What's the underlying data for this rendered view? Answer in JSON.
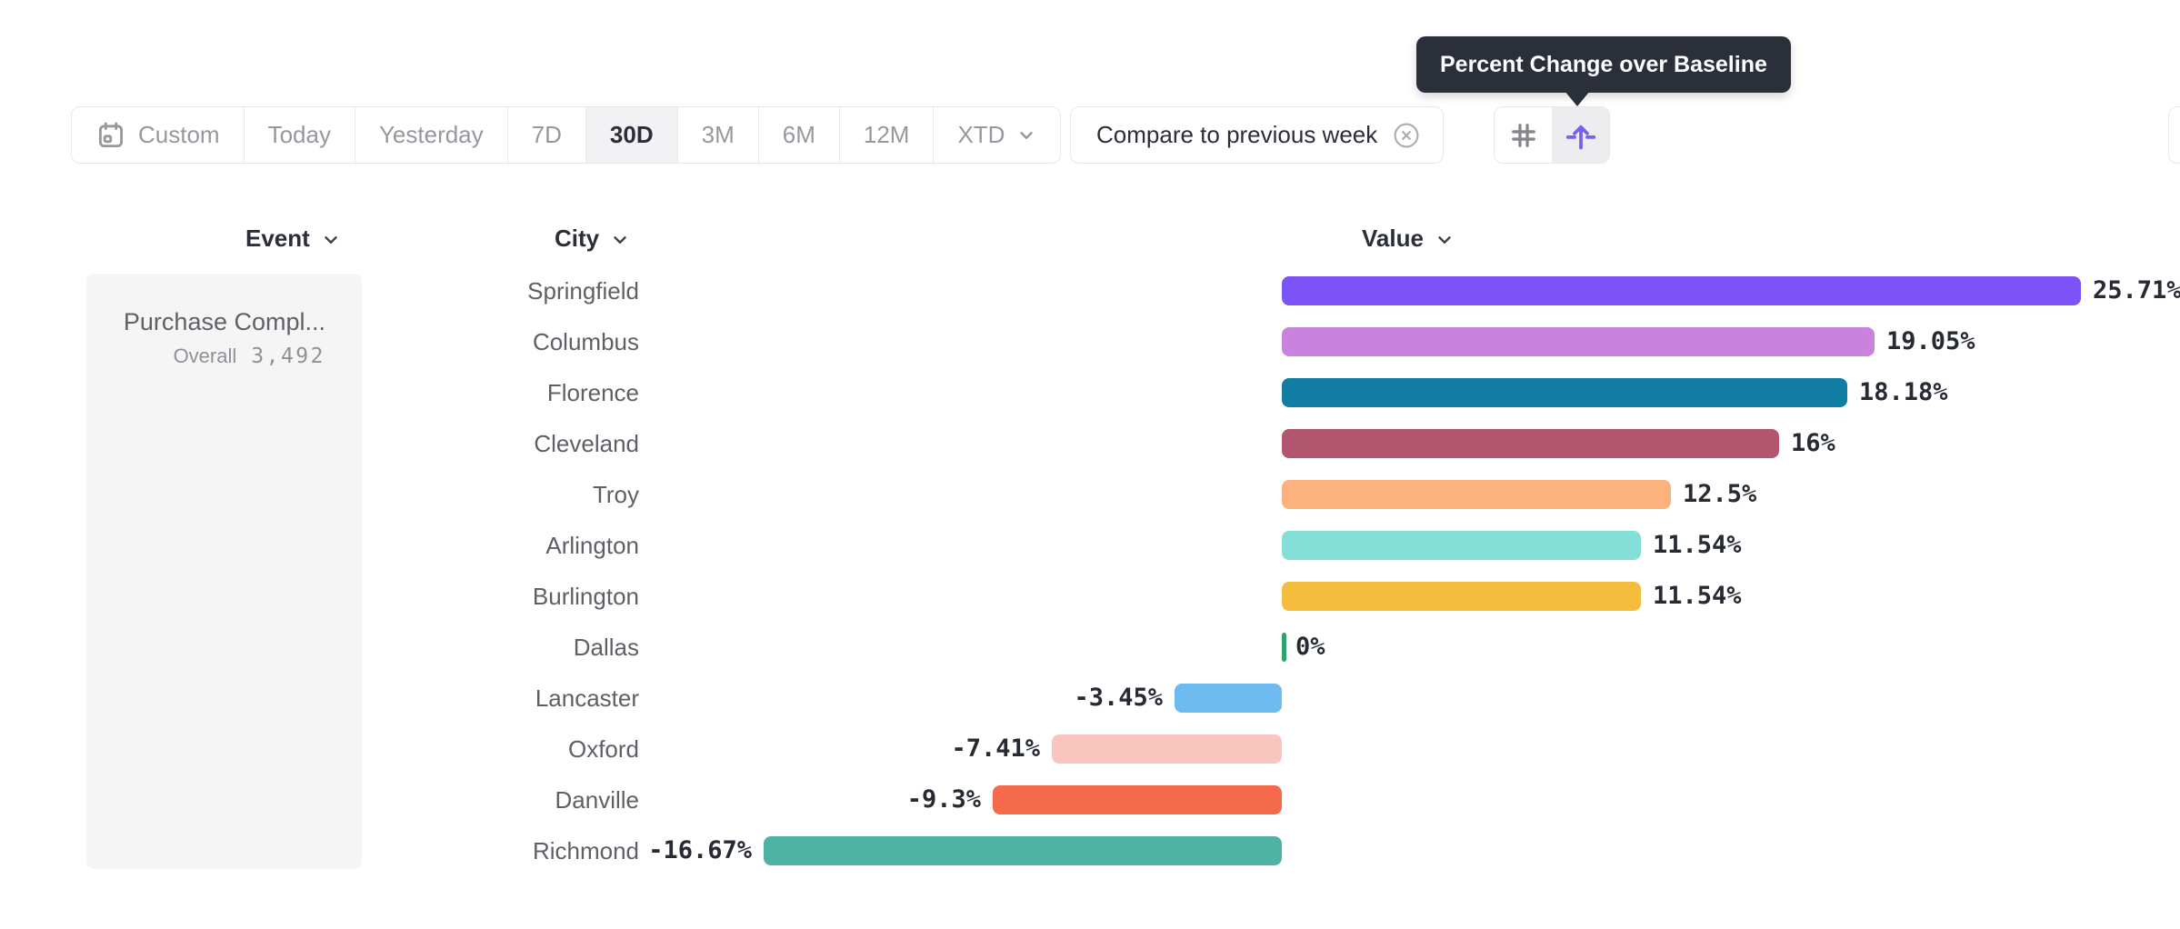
{
  "tooltip": {
    "text": "Percent Change over Baseline"
  },
  "toolbar": {
    "date_ranges": [
      {
        "label": "Custom",
        "icon": "calendar-icon",
        "selected": false
      },
      {
        "label": "Today",
        "selected": false
      },
      {
        "label": "Yesterday",
        "selected": false
      },
      {
        "label": "7D",
        "selected": false
      },
      {
        "label": "30D",
        "selected": true
      },
      {
        "label": "3M",
        "selected": false
      },
      {
        "label": "6M",
        "selected": false
      },
      {
        "label": "12M",
        "selected": false
      },
      {
        "label": "XTD",
        "selected": false,
        "has_chevron": true
      }
    ],
    "compare": {
      "label": "Compare to previous week",
      "dismiss_icon": "close-circle-icon"
    },
    "view_toggle": [
      {
        "icon": "grid-icon",
        "selected": false
      },
      {
        "icon": "baseline-lift-icon",
        "selected": true
      }
    ]
  },
  "columns": {
    "event": {
      "label": "Event"
    },
    "city": {
      "label": "City"
    },
    "value": {
      "label": "Value"
    }
  },
  "event_panel": {
    "event_name": "Purchase Compl...",
    "overall_label": "Overall",
    "overall_value": "3,492"
  },
  "chart_data": {
    "type": "bar",
    "orientation": "horizontal",
    "title": "Percent Change over Baseline",
    "group_by": "City",
    "event": "Purchase Completed",
    "categories": [
      "Springfield",
      "Columbus",
      "Florence",
      "Cleveland",
      "Troy",
      "Arlington",
      "Burlington",
      "Dallas",
      "Lancaster",
      "Oxford",
      "Danville",
      "Richmond"
    ],
    "values": [
      25.71,
      19.05,
      18.18,
      16,
      12.5,
      11.54,
      11.54,
      0,
      -3.45,
      -7.41,
      -9.3,
      -16.67
    ],
    "labels": [
      "25.71%",
      "19.05%",
      "18.18%",
      "16%",
      "12.5%",
      "11.54%",
      "11.54%",
      "0%",
      "-3.45%",
      "-7.41%",
      "-9.3%",
      "-16.67%"
    ],
    "colors": [
      "#7B53F6",
      "#C982DE",
      "#117DA2",
      "#B25670",
      "#FDB27E",
      "#83DFD7",
      "#F5BD3D",
      "#2EA36E",
      "#6DBBF0",
      "#FAC5BD",
      "#F56A4B",
      "#4EB3A4"
    ],
    "xlim": [
      -20,
      28
    ],
    "grid": false,
    "legend": false
  },
  "colors": {
    "accent_purple": "#7A5FF1",
    "tooltip_bg": "#2B2F3A",
    "border": "#E7E7EA",
    "panel_bg": "#F5F5F6",
    "text_dark": "#2B2E38",
    "text_gray": "#96989D",
    "zero_baseline_green": "#2EA36E"
  }
}
